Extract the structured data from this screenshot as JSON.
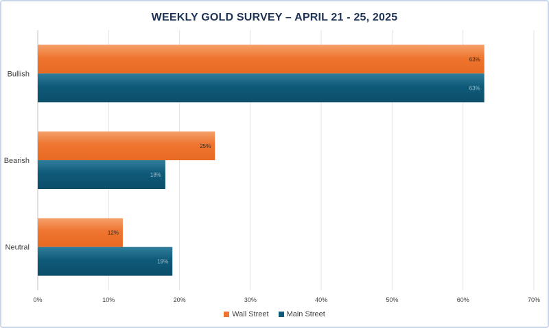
{
  "chart_data": {
    "type": "bar",
    "orientation": "horizontal",
    "title": "WEEKLY GOLD SURVEY – APRIL 21 - 25, 2025",
    "categories": [
      "Bullish",
      "Bearish",
      "Neutral"
    ],
    "series": [
      {
        "name": "Wall Street",
        "color": "#ee7530",
        "values": [
          63,
          25,
          12
        ],
        "labels": [
          "63%",
          "25%",
          "12%"
        ]
      },
      {
        "name": "Main Street",
        "color": "#0f5a79",
        "values": [
          63,
          18,
          19
        ],
        "labels": [
          "63%",
          "18%",
          "19%"
        ]
      }
    ],
    "xlim": [
      0,
      70
    ],
    "xticks": [
      0,
      10,
      20,
      30,
      40,
      50,
      60,
      70
    ],
    "xtick_labels": [
      "0%",
      "10%",
      "20%",
      "30%",
      "40%",
      "50%",
      "60%",
      "70%"
    ],
    "grid": true,
    "legend_position": "bottom"
  }
}
